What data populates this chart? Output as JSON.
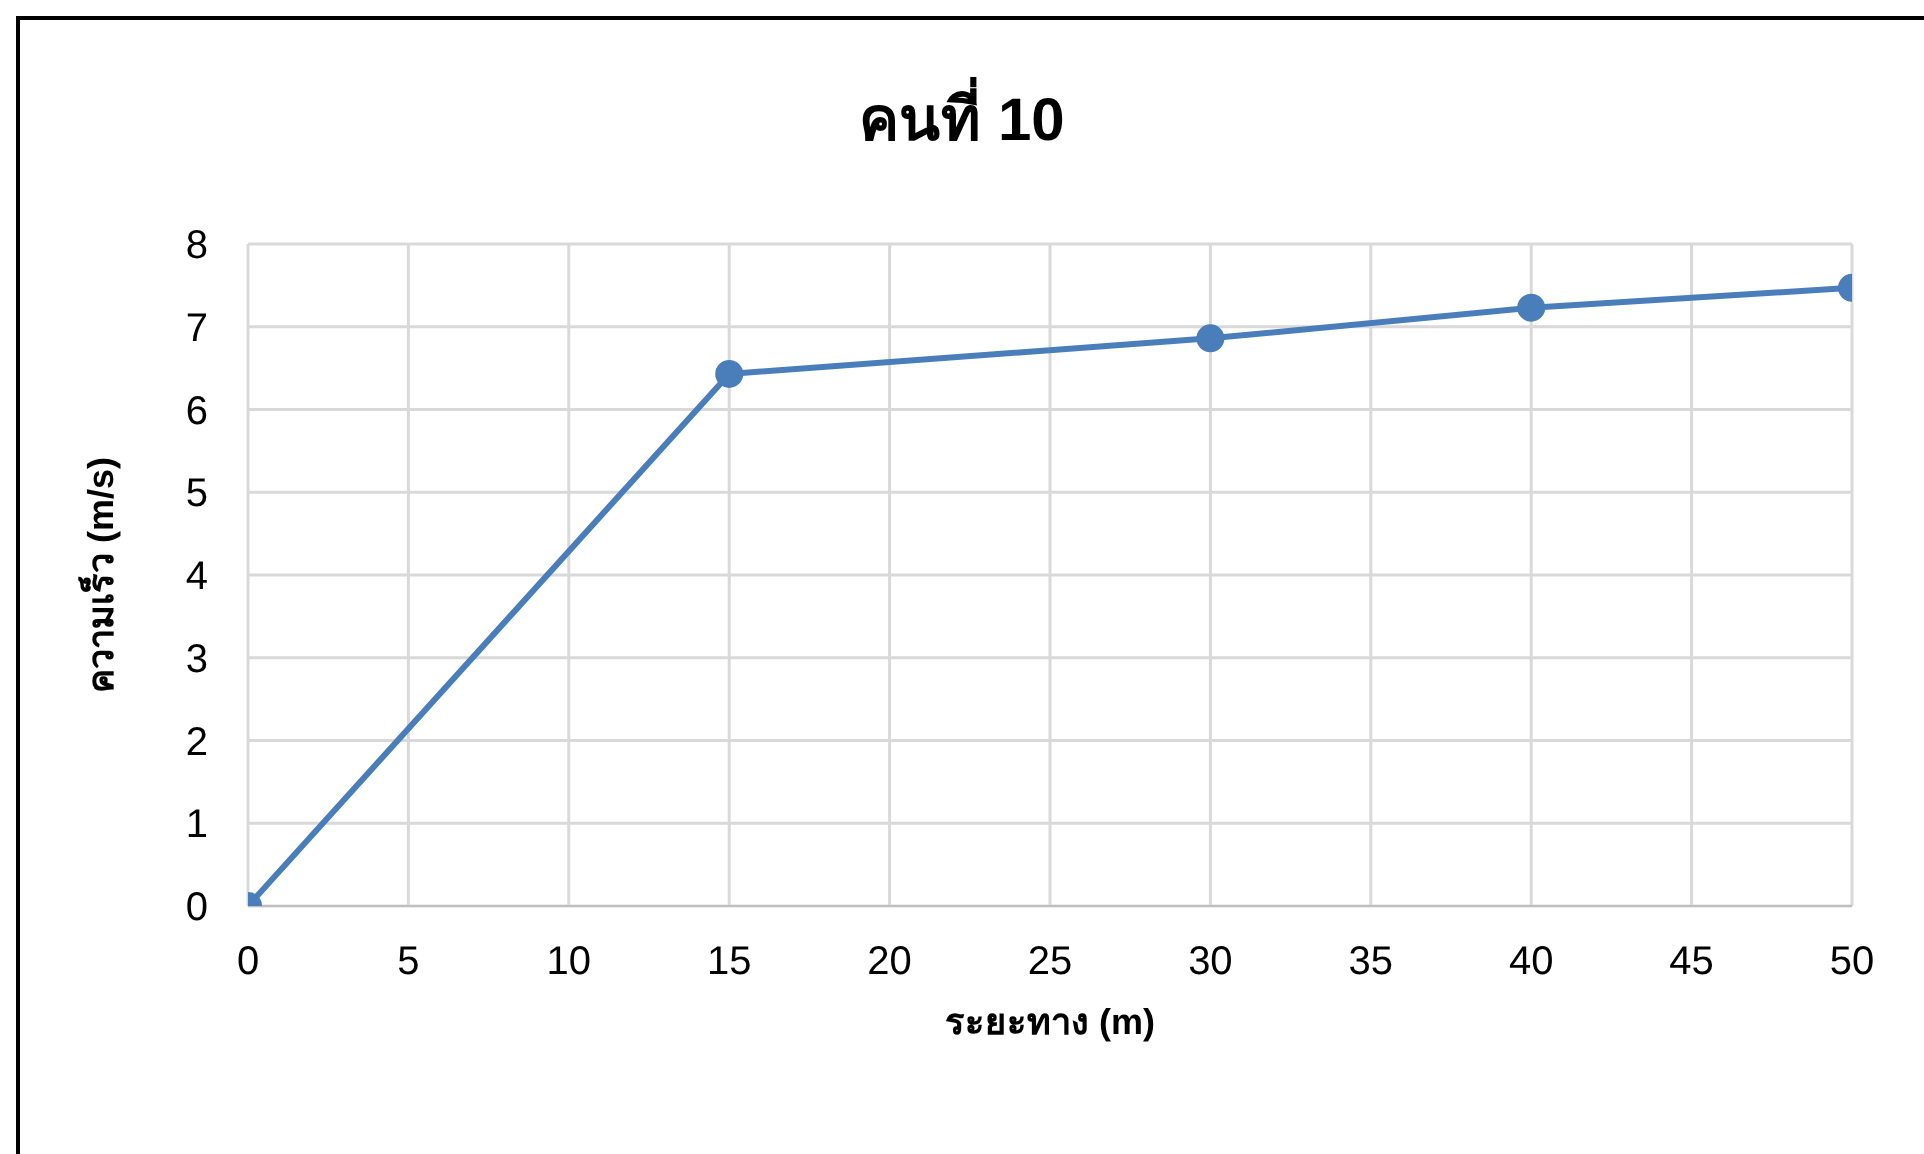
{
  "chart_data": {
    "type": "line",
    "title": "คนที่ 10",
    "xlabel": "ระยะทาง (m)",
    "ylabel": "ความเร็ว (m/s)",
    "x": [
      0,
      15,
      30,
      40,
      50
    ],
    "series": [
      {
        "color": "#4a7ebb",
        "values": [
          0,
          6.43,
          6.86,
          7.23,
          7.47
        ]
      }
    ],
    "xlim": [
      0,
      50
    ],
    "xticks": [
      0,
      5,
      10,
      15,
      20,
      25,
      30,
      35,
      40,
      45,
      50
    ],
    "ylim": [
      0,
      8
    ],
    "yticks": [
      0,
      1,
      2,
      3,
      4,
      5,
      6,
      7,
      8
    ],
    "grid": true,
    "marker": "circle",
    "line_style": "solid",
    "legend": false
  }
}
